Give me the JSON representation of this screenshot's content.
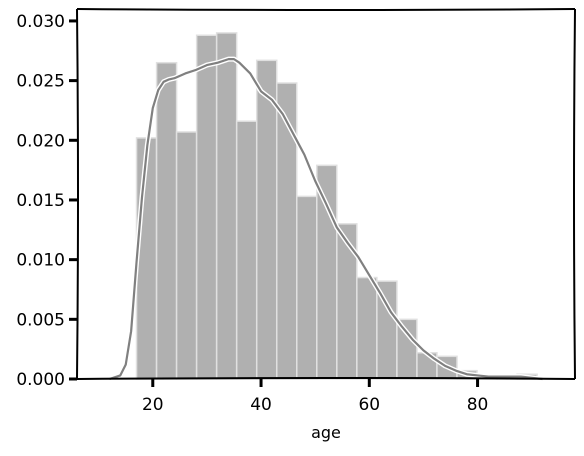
{
  "chart_data": {
    "type": "bar",
    "style": "xkcd-hand-drawn",
    "title": "",
    "xlabel": "age",
    "ylabel": "",
    "xlim": [
      6,
      98
    ],
    "ylim": [
      0,
      0.031
    ],
    "grid": false,
    "legend": "none",
    "xticks": [
      20,
      40,
      60,
      80
    ],
    "xtick_labels": [
      "20",
      "40",
      "60",
      "80"
    ],
    "yticks": [
      0,
      0.005,
      0.01,
      0.015,
      0.02,
      0.025,
      0.03
    ],
    "ytick_labels": [
      "0.000",
      "0.005",
      "0.010",
      "0.015",
      "0.020",
      "0.025",
      "0.030"
    ],
    "histogram": {
      "bin_width": 3.7,
      "bins": [
        {
          "x_start": 17.0,
          "density": 0.0202
        },
        {
          "x_start": 20.7,
          "density": 0.0265
        },
        {
          "x_start": 24.4,
          "density": 0.0207
        },
        {
          "x_start": 28.1,
          "density": 0.0288
        },
        {
          "x_start": 31.8,
          "density": 0.029
        },
        {
          "x_start": 35.5,
          "density": 0.0216
        },
        {
          "x_start": 39.2,
          "density": 0.0267
        },
        {
          "x_start": 42.9,
          "density": 0.0248
        },
        {
          "x_start": 46.6,
          "density": 0.0153
        },
        {
          "x_start": 50.3,
          "density": 0.0179
        },
        {
          "x_start": 54.0,
          "density": 0.013
        },
        {
          "x_start": 57.7,
          "density": 0.0085
        },
        {
          "x_start": 61.4,
          "density": 0.0082
        },
        {
          "x_start": 65.1,
          "density": 0.005
        },
        {
          "x_start": 68.8,
          "density": 0.0022
        },
        {
          "x_start": 72.5,
          "density": 0.0019
        },
        {
          "x_start": 76.2,
          "density": 0.0007
        },
        {
          "x_start": 79.9,
          "density": 0.0003
        },
        {
          "x_start": 83.6,
          "density": 0.0001
        },
        {
          "x_start": 87.3,
          "density": 0.0004
        }
      ]
    },
    "kde": {
      "x": [
        12,
        14,
        15,
        16,
        17,
        18,
        19,
        20,
        21,
        22,
        23,
        24,
        26,
        28,
        30,
        32,
        34,
        35,
        36,
        38,
        40,
        42,
        44,
        46,
        48,
        50,
        52,
        54,
        56,
        58,
        60,
        62,
        64,
        66,
        68,
        70,
        72,
        74,
        76,
        78,
        80,
        82,
        84,
        86,
        88,
        90,
        92
      ],
      "y": [
        0.0,
        0.0003,
        0.0012,
        0.004,
        0.0098,
        0.0152,
        0.0196,
        0.0227,
        0.0242,
        0.0249,
        0.0251,
        0.0252,
        0.0256,
        0.0259,
        0.0263,
        0.0265,
        0.0268,
        0.0268,
        0.0265,
        0.0256,
        0.0241,
        0.0234,
        0.0222,
        0.0205,
        0.0188,
        0.0166,
        0.0147,
        0.0127,
        0.0114,
        0.0102,
        0.0087,
        0.0072,
        0.0056,
        0.0044,
        0.0033,
        0.0024,
        0.0017,
        0.0011,
        0.0007,
        0.0004,
        0.0003,
        0.0002,
        0.0002,
        0.0002,
        0.0002,
        0.0001,
        0.0
      ]
    },
    "colors": {
      "bar_fill": "#b0b0b0",
      "bar_edge": "#e0e0e0",
      "kde_line": "#808080",
      "axis": "#000000"
    }
  }
}
